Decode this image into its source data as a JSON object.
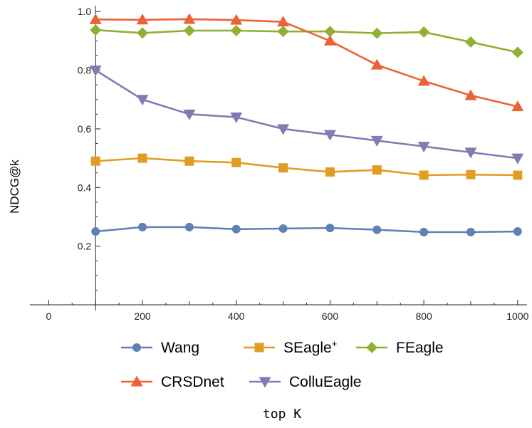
{
  "chart_data": {
    "type": "line",
    "title": "",
    "xlabel": "top K",
    "ylabel": "NDCG@k",
    "xlim": [
      -40,
      1020
    ],
    "ylim": [
      0,
      1.02
    ],
    "x_ticks": [
      0,
      200,
      400,
      600,
      800,
      1000
    ],
    "y_ticks": [
      0.2,
      0.4,
      0.6,
      0.8,
      1.0
    ],
    "x": [
      100,
      200,
      300,
      400,
      500,
      600,
      700,
      800,
      900,
      1000
    ],
    "grid": false,
    "legend_position": "bottom",
    "series": [
      {
        "name": "Wang",
        "superscript": "",
        "color": "#5e81b5",
        "marker": "circle",
        "values": [
          0.25,
          0.265,
          0.265,
          0.258,
          0.26,
          0.262,
          0.256,
          0.248,
          0.248,
          0.25
        ]
      },
      {
        "name": "SEagle",
        "superscript": "+",
        "color": "#e19c24",
        "marker": "square",
        "values": [
          0.49,
          0.5,
          0.49,
          0.485,
          0.467,
          0.453,
          0.46,
          0.442,
          0.444,
          0.442
        ]
      },
      {
        "name": "FEagle",
        "superscript": "",
        "color": "#8fb032",
        "marker": "diamond",
        "values": [
          0.937,
          0.927,
          0.935,
          0.935,
          0.932,
          0.932,
          0.926,
          0.93,
          0.896,
          0.861
        ]
      },
      {
        "name": "CRSDnet",
        "superscript": "",
        "color": "#eb6235",
        "marker": "triangle-up",
        "values": [
          0.973,
          0.972,
          0.974,
          0.971,
          0.965,
          0.9,
          0.818,
          0.763,
          0.714,
          0.676
        ]
      },
      {
        "name": "ColluEagle",
        "superscript": "",
        "color": "#8778b3",
        "marker": "triangle-down",
        "values": [
          0.8,
          0.7,
          0.65,
          0.64,
          0.6,
          0.58,
          0.56,
          0.54,
          0.52,
          0.5
        ]
      }
    ]
  }
}
